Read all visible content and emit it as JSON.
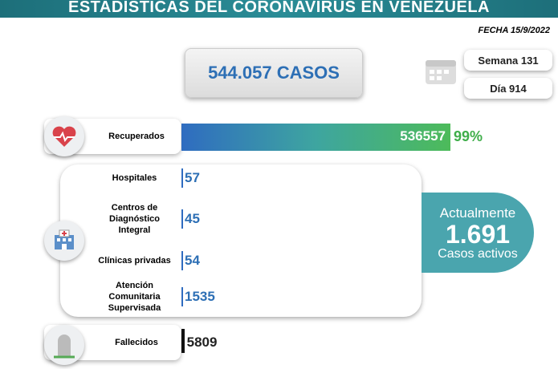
{
  "header": {
    "title": "ESTADÍSTICAS DEL CORONAVIRUS EN VENEZUELA",
    "date": "FECHA 15/9/2022"
  },
  "total_cases": "544.057 CASOS",
  "week": "Semana 131",
  "day": "Día 914",
  "recovered": {
    "label": "Recuperados",
    "value": 536557,
    "percent": "99%"
  },
  "rows": [
    {
      "label": "Hospitales",
      "value": 57
    },
    {
      "label": "Centros de Diagnóstico Integral",
      "value": 45
    },
    {
      "label": "Clínicas privadas",
      "value": 54
    },
    {
      "label": "Atención Comunitaria Supervisada",
      "value": 1535
    }
  ],
  "active": {
    "title": "Actualmente",
    "value": "1.691",
    "label": "Casos activos"
  },
  "deceased": {
    "label": "Fallecidos",
    "value": 5809
  }
}
